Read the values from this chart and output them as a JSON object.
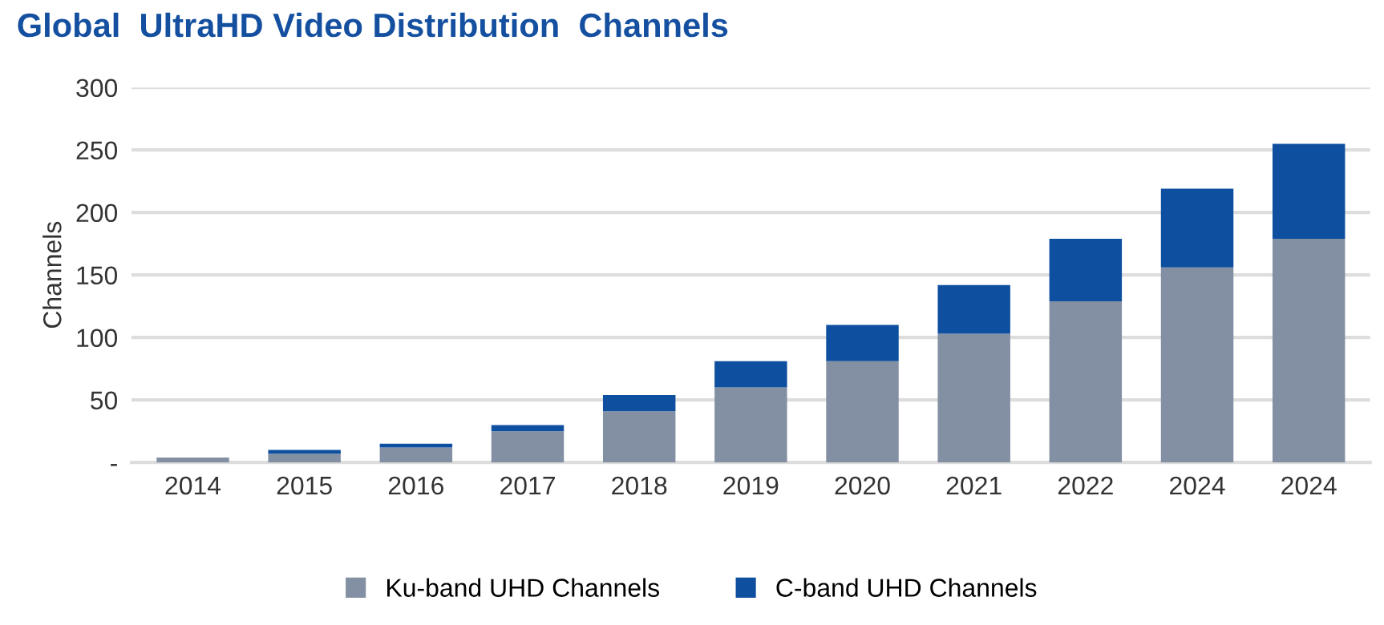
{
  "chart_data": {
    "type": "bar",
    "title": "Global  UltraHD Video Distribution  Channels",
    "ylabel": "Channels",
    "categories": [
      "2014",
      "2015",
      "2016",
      "2017",
      "2018",
      "2019",
      "2020",
      "2021",
      "2022",
      "2024",
      "2024"
    ],
    "series": [
      {
        "name": "Ku-band UHD Channels",
        "color": "#8390a3",
        "values": [
          4,
          7,
          12,
          25,
          41,
          60,
          81,
          103,
          129,
          156,
          179
        ]
      },
      {
        "name": "C-band UHD Channels",
        "color": "#0f4f9f",
        "values": [
          0,
          3,
          3,
          5,
          13,
          21,
          29,
          39,
          50,
          63,
          76
        ]
      }
    ],
    "stacked": true,
    "ylim": [
      0,
      300
    ],
    "yticks": [
      {
        "value": 0,
        "label": "-"
      },
      50,
      100,
      150,
      200,
      250,
      300
    ],
    "grid": "y",
    "legend": "bottom"
  }
}
